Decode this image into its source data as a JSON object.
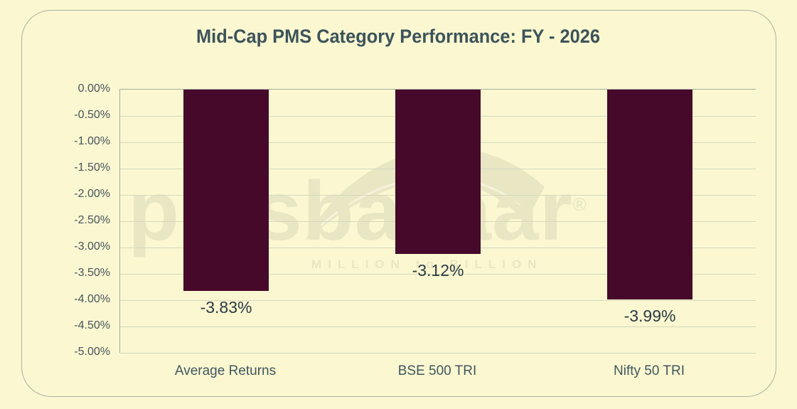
{
  "title": "Mid-Cap PMS Category Performance: FY - 2026",
  "watermark": {
    "brand": "pmsbazaar",
    "registered_mark": "®",
    "tagline": "MILLION to BILLION"
  },
  "chart_data": {
    "type": "bar",
    "title": "Mid-Cap PMS Category Performance: FY - 2026",
    "categories": [
      "Average Returns",
      "BSE 500 TRI",
      "Nifty 50 TRI"
    ],
    "values": [
      -3.83,
      -3.12,
      -3.99
    ],
    "value_labels": [
      "-3.83%",
      "-3.12%",
      "-3.99%"
    ],
    "xlabel": "",
    "ylabel": "",
    "ylim": [
      -5,
      0
    ],
    "ytick_step": 0.5,
    "ytick_labels": [
      "0.00%",
      "-0.50%",
      "-1.00%",
      "-1.50%",
      "-2.00%",
      "-2.50%",
      "-3.00%",
      "-3.50%",
      "-4.00%",
      "-4.50%",
      "-5.00%"
    ],
    "grid": true,
    "legend": false,
    "bar_color": "#46092a",
    "background_color": "#fbf8d1",
    "gridline_color": "#d3d7bd",
    "axis_color": "#a4aba3",
    "title_color": "#3c535a",
    "watermark_color": "#e9e6c3"
  }
}
